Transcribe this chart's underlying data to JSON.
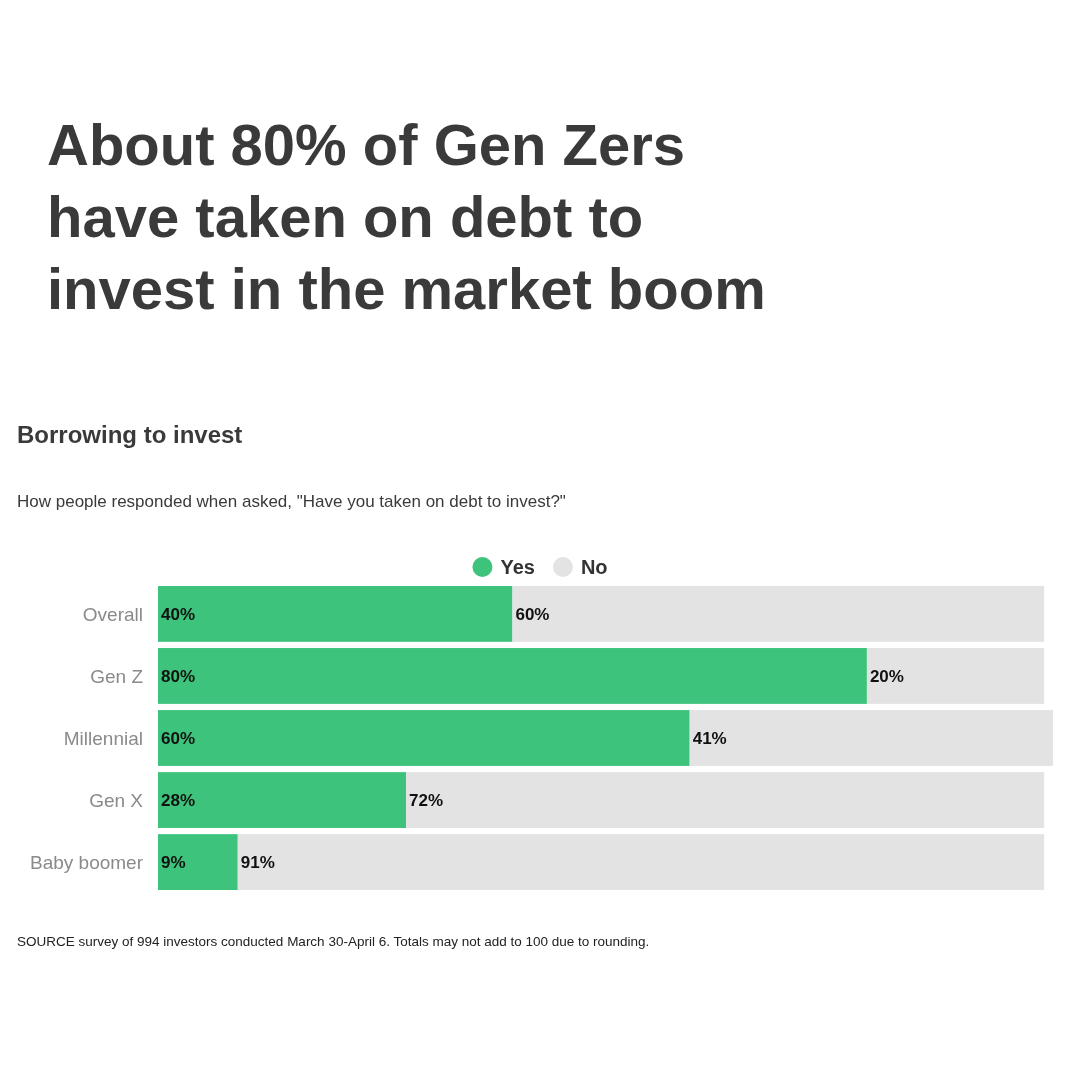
{
  "chart_data": {
    "type": "bar",
    "orientation": "horizontal",
    "stacked": true,
    "title": "About 80% of Gen Zers have taken on debt to invest in the market boom",
    "subtitle": "Borrowing to invest",
    "annotations": [
      "How people responded when asked, \"Have you taken on debt to invest?\"",
      "SOURCE survey of 994 investors conducted March 30-April 6. Totals may not add to 100 due to rounding."
    ],
    "categories": [
      "Overall",
      "Gen Z",
      "Millennial",
      "Gen X",
      "Baby boomer"
    ],
    "series": [
      {
        "name": "Yes",
        "color": "#3dc37b",
        "values": [
          40,
          80,
          60,
          28,
          9
        ],
        "value_labels": [
          "40%",
          "80%",
          "60%",
          "28%",
          "9%"
        ]
      },
      {
        "name": "No",
        "color": "#e3e3e3",
        "values": [
          60,
          20,
          41,
          72,
          91
        ],
        "value_labels": [
          "60%",
          "20%",
          "41%",
          "72%",
          "91%"
        ]
      }
    ],
    "xlim": [
      0,
      101
    ],
    "tick_labels": "y",
    "legend": "top"
  }
}
